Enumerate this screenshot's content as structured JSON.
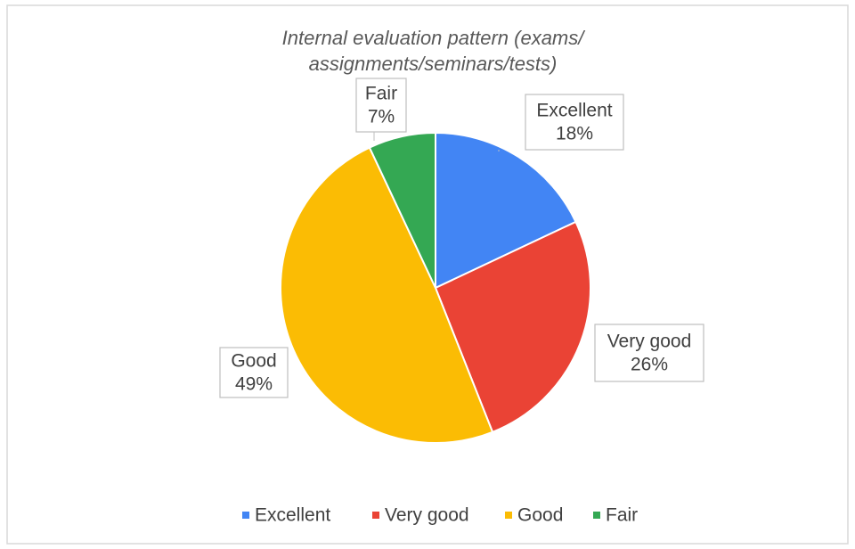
{
  "chart_data": {
    "type": "pie",
    "title": [
      "Internal evaluation pattern (exams/",
      "assignments/seminars/tests)"
    ],
    "categories": [
      "Excellent",
      "Very good",
      "Good",
      "Fair"
    ],
    "values": [
      18,
      26,
      49,
      7
    ],
    "value_labels": [
      "18%",
      "26%",
      "49%",
      "7%"
    ],
    "colors": [
      "#4285f4",
      "#ea4335",
      "#fbbc04",
      "#34a853"
    ],
    "legend": "bottom"
  }
}
